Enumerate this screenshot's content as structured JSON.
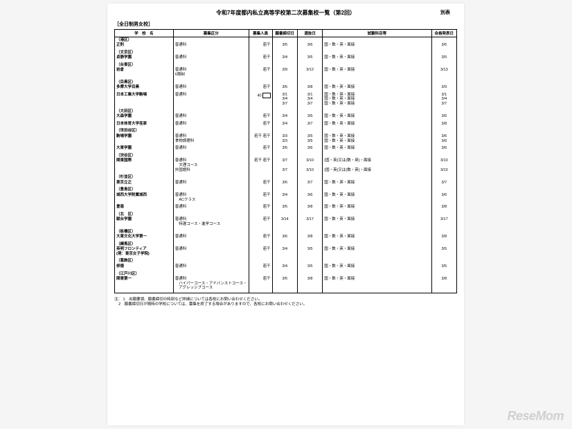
{
  "title": "令和7年度都内私立高等学校第二次募集校一覧（第2回）",
  "appendix": "別表",
  "section_label": "［全日制男女校］",
  "headers": {
    "school": "学　校　名",
    "course": "募集区分",
    "capacity": "募集人員",
    "deadline": "願書締切日",
    "exam": "選抜日",
    "subjects": "試験科目等",
    "result": "合格発表日"
  },
  "rows": [
    {
      "ward": "（港区）"
    },
    {
      "school": "正則",
      "course": "普通科",
      "capacity": "若干",
      "deadline": "3/5",
      "exam": "3/6",
      "subjects": "国・数・英・面接",
      "result": "3/6"
    },
    {
      "ward": "（文京区）"
    },
    {
      "school": "貞静学園",
      "course": "普通科",
      "capacity": "若干",
      "deadline": "3/4",
      "exam": "3/5",
      "subjects": "国・数・英・面接",
      "result": "3/5"
    },
    {
      "ward": "（台東区）"
    },
    {
      "school": "岩倉",
      "course": "普通科\n6限制",
      "capacity": "若干",
      "deadline": "3/9",
      "exam": "3/12",
      "subjects": "国・数・英・面接",
      "result": "3/13"
    },
    {
      "ward": "（目黒区）"
    },
    {
      "school": "多摩大学目黒",
      "course": "普通科",
      "capacity": "若干",
      "deadline": "3/5",
      "exam": "3/8",
      "subjects": "国・数・英・面接",
      "result": "3/9"
    },
    {
      "school": "日本工業大学駒場",
      "course": "普通科",
      "capacity": "40",
      "box": true,
      "deadline": "3/1\n3/4\n3/7",
      "exam": "3/1\n3/4\n3/7",
      "subjects": "国・数・英・面接\n国・数・英・面接\n国・数・英・面接",
      "result": "3/1\n3/4\n3/7"
    },
    {
      "ward": "（大田区）"
    },
    {
      "school": "大森学園",
      "course": "普通科",
      "capacity": "若干",
      "deadline": "3/4",
      "exam": "3/5",
      "subjects": "国・数・英・面接",
      "result": "3/5"
    },
    {
      "school": "日本体育大学荏原",
      "course": "普通科",
      "capacity": "若干",
      "deadline": "3/4",
      "exam": "3/7",
      "subjects": "国・数・英・面接",
      "result": "3/8"
    },
    {
      "ward": "（世田谷区）"
    },
    {
      "school": "駒場学園",
      "course": "普通科\n食物調理科",
      "capacity": "若干\n若干",
      "deadline": "3/3\n3/3",
      "exam": "3/5\n3/5",
      "subjects": "国・数・英・面接\n国・数・英・面接",
      "result": "3/6\n3/6"
    },
    {
      "school": "大東学園",
      "course": "普通科",
      "capacity": "若干",
      "deadline": "3/5",
      "exam": "3/6",
      "subjects": "国・数・英・面接",
      "result": "3/6"
    },
    {
      "ward": "（渋谷区）"
    },
    {
      "school": "関東国際",
      "course": "普通科\n　文理コース\n外国語科",
      "capacity": "若干\n\n若干",
      "deadline": "3/7\n\n3/7",
      "exam": "3/10\n\n3/10",
      "subjects": "(国・英)又は(数・英)・面接\n\n(国・英)又は(数・英)・面接",
      "result": "3/10\n\n3/10"
    },
    {
      "ward": "（杉並区）"
    },
    {
      "school": "東京立正",
      "course": "普通科",
      "capacity": "若干",
      "deadline": "3/6",
      "exam": "3/7",
      "subjects": "国・数・英・面接",
      "result": "3/7"
    },
    {
      "ward": "（豊島区）"
    },
    {
      "school": "城西大学附属城西",
      "course": "普通科\n　ACクラス",
      "capacity": "若干",
      "deadline": "3/4",
      "exam": "3/6",
      "subjects": "国・数・英・面接",
      "result": "3/6"
    },
    {
      "school": "豊南",
      "course": "普通科",
      "capacity": "若干",
      "deadline": "3/5",
      "exam": "3/8",
      "subjects": "国・数・英・面接",
      "result": "3/8"
    },
    {
      "ward": "（北　区）"
    },
    {
      "school": "駿台学園",
      "course": "普通科\n　特選コース・進学コース",
      "capacity": "若干",
      "deadline": "3/14",
      "exam": "3/17",
      "subjects": "国・数・英・面接",
      "result": "3/17"
    },
    {
      "ward": "（板橋区）"
    },
    {
      "school": "大東文化大学第一",
      "course": "普通科",
      "capacity": "若干",
      "deadline": "3/6",
      "exam": "3/8",
      "subjects": "国・数・英・面接",
      "result": "3/8"
    },
    {
      "ward": "（練馬区）"
    },
    {
      "school": "英明フロンティア\n(現：東京女子学院)",
      "course": "普通科",
      "capacity": "若干",
      "deadline": "3/4",
      "exam": "3/5",
      "subjects": "国・数・英・面接",
      "result": "3/5"
    },
    {
      "ward": "（葛飾区）"
    },
    {
      "school": "修徳",
      "course": "普通科",
      "capacity": "若干",
      "deadline": "3/4",
      "exam": "3/5",
      "subjects": "国・数・英・面接",
      "result": "3/5"
    },
    {
      "ward": "（江戸川区）"
    },
    {
      "school": "関東第一",
      "course": "普通科\n　ハイパーコース・アドバンストコース・\n　アグレッシブコース",
      "capacity": "若干",
      "deadline": "3/5",
      "exam": "3/8",
      "subjects": "国・数・英・面接",
      "result": "3/8"
    }
  ],
  "notes_label": "注：",
  "note1": "1　出願要領、願書締切の時刻など詳細については各校にお問い合わせください。",
  "note2": "2　願書締切日が随時の学校については、募集を終了する場合がありますので、各校にお問い合わせください。",
  "logo": "ReseMom"
}
